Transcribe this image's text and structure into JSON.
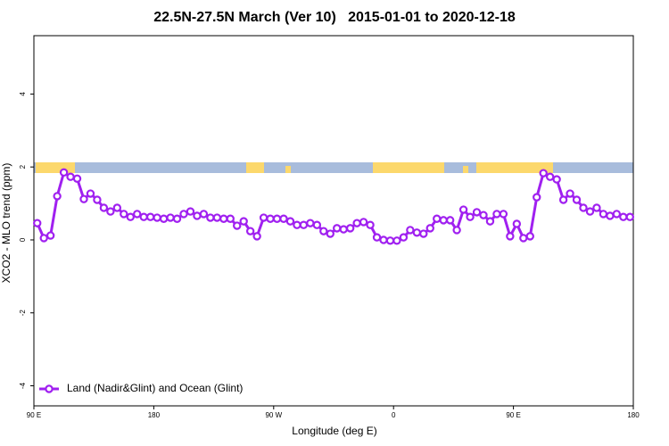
{
  "chart_data": {
    "type": "line",
    "title": "22.5N-27.5N March (Ver 10)   2015-01-01 to 2020-12-18",
    "x_label": "Longitude (deg E)",
    "y_label": "XCO2 - MLO trend (ppm)",
    "xlim": [
      90,
      540
    ],
    "ylim": [
      -4.55,
      5.6
    ],
    "xticks": [
      {
        "value": 90,
        "label": "90 E"
      },
      180,
      {
        "value": 270,
        "label": "90 W"
      },
      {
        "value": 360,
        "label": "0"
      },
      {
        "value": 450,
        "label": "90 E"
      },
      {
        "value": 540,
        "label": "180"
      }
    ],
    "yticks": [
      -4,
      -2,
      0,
      2,
      4
    ],
    "legend": "bottom-left",
    "x": [
      92.5,
      97.5,
      102.5,
      107.5,
      112.5,
      117.5,
      122.5,
      127.5,
      132.5,
      137.5,
      142.5,
      147.5,
      152.5,
      157.5,
      162.5,
      167.5,
      172.5,
      177.5,
      182.5,
      187.5,
      192.5,
      197.5,
      202.5,
      207.5,
      212.5,
      217.5,
      222.5,
      227.5,
      232.5,
      237.5,
      242.5,
      247.5,
      252.5,
      257.5,
      262.5,
      267.5,
      272.5,
      277.5,
      282.5,
      287.5,
      292.5,
      297.5,
      302.5,
      307.5,
      312.5,
      317.5,
      322.5,
      327.5,
      332.5,
      337.5,
      342.5,
      347.5,
      352.5,
      357.5,
      362.5,
      367.5,
      372.5,
      377.5,
      382.5,
      387.5,
      392.5,
      397.5,
      402.5,
      407.5,
      412.5,
      417.5,
      422.5,
      427.5,
      432.5,
      437.5,
      442.5,
      447.5,
      452.5,
      457.5,
      462.5,
      467.5,
      472.5,
      477.5,
      482.5,
      487.5,
      492.5,
      497.5,
      502.5,
      507.5,
      512.5,
      517.5,
      522.5,
      527.5,
      532.5,
      537.5
    ],
    "series": [
      {
        "name": "Land (Nadir&Glint) and Ocean (Glint)",
        "color": "#a020f0",
        "values": [
          0.46,
          0.05,
          0.12,
          1.2,
          1.85,
          1.73,
          1.68,
          1.12,
          1.27,
          1.1,
          0.88,
          0.78,
          0.88,
          0.71,
          0.63,
          0.71,
          0.63,
          0.63,
          0.61,
          0.58,
          0.61,
          0.58,
          0.71,
          0.78,
          0.66,
          0.71,
          0.61,
          0.61,
          0.58,
          0.58,
          0.39,
          0.51,
          0.24,
          0.1,
          0.61,
          0.58,
          0.58,
          0.58,
          0.51,
          0.41,
          0.41,
          0.46,
          0.41,
          0.24,
          0.17,
          0.32,
          0.29,
          0.32,
          0.46,
          0.49,
          0.41,
          0.07,
          0,
          -0.02,
          -0.02,
          0.07,
          0.27,
          0.2,
          0.17,
          0.32,
          0.58,
          0.54,
          0.54,
          0.27,
          0.83,
          0.63,
          0.76,
          0.68,
          0.51,
          0.71,
          0.71,
          0.1,
          0.44,
          0.05,
          0.1,
          1.17,
          1.83,
          1.73,
          1.66,
          1.1,
          1.27,
          1.1,
          0.88,
          0.78,
          0.88,
          0.71,
          0.66,
          0.71,
          0.63,
          0.63
        ]
      }
    ]
  }
}
